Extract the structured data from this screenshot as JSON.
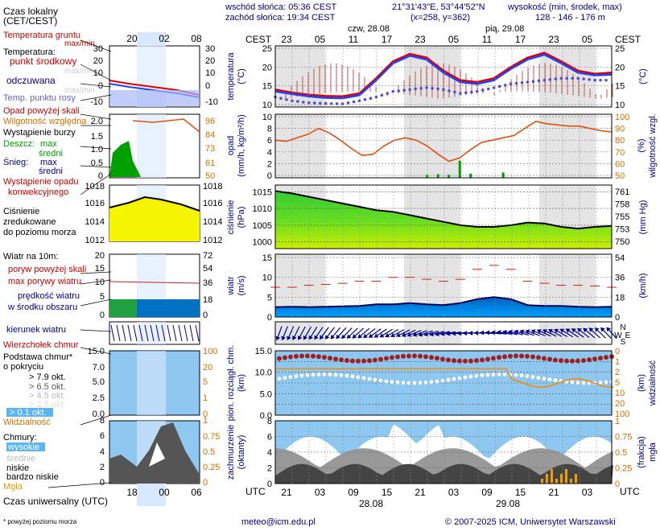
{
  "header": {
    "sunrise": "wschód słońca: 05:36 CEST",
    "sunset": "zachód słońca: 19:34 CEST",
    "coords": "21°31'43\"E, 53°44'52\"N",
    "grid": "(x=258, y=362)",
    "elev_title": "wysokość (min, środek, max)",
    "elev_values": "128 - 146 - 176 m"
  },
  "axes": {
    "cest": "CEST",
    "utc": "UTC",
    "day1_label": "czw, 28.08",
    "day2_label": "pią, 29.08",
    "top_ticks": [
      "23",
      "05",
      "11",
      "17",
      "23",
      "05",
      "11",
      "17",
      "23",
      "05"
    ],
    "bottom_ticks": [
      "21",
      "03",
      "09",
      "15",
      "21",
      "03",
      "09",
      "15",
      "21",
      "03"
    ],
    "bottom_day1": "28.08",
    "bottom_day2": "29.08"
  },
  "legend": {
    "local_time": "Czas lokalny",
    "local_time2": "(CET/CEST)",
    "local_ticks": [
      "20",
      "02",
      "08"
    ],
    "ground_temp": "Temperatura gruntu",
    "maxmin": "max/min",
    "temperature": "Temperatura:",
    "midpoint": "punkt środkowy",
    "maxmin_faint": "max/min",
    "feels": "odczuwana",
    "feels_maxmin": "max/min",
    "dew": "Temp. punktu rosy",
    "precip_over": "Opad powyżej skali",
    "humidity": "Wilgotność względna",
    "storm": "Wystąpienie burzy",
    "rain": "Deszcz:",
    "rain_max": "max",
    "rain_mean": "średni",
    "snow": "Śnieg:",
    "snow_max": "max",
    "snow_mean": "średni",
    "conv1": "Wystąpienie opadu",
    "conv2": "konwekcyjnego",
    "pressure1": "Ciśnienie",
    "pressure2": "zredukowane",
    "pressure3": "do poziomu morza",
    "wind10": "Wiatr na 10m:",
    "gust_over": "poryw powyżej skali",
    "gust_max": "max porywy wiatru",
    "wind_speed1": "prędkość wiatru",
    "wind_speed2": "w środku obszaru",
    "wind_dir": "kierunek wiatru",
    "cloud_top": "Wierzchołek chmur",
    "cloud_base1": "Podstawa chmur*",
    "cloud_base2": "o pokryciu",
    "okt1": "> 7.9 okt.",
    "okt2": "> 6.5 okt.",
    "okt3": "> 4.5 okt.",
    "okt4": "> 2.5 okt.",
    "okt5": "> 0.1 okt.",
    "visibility": "Widzialność",
    "clouds": "Chmury:",
    "high": "wysokie",
    "mid": "średnie",
    "low": "niskie",
    "very_low": "bardzo niskie",
    "fog": "Mgła",
    "utc_label": "Czas uniwersalny (UTC)",
    "utc_ticks": [
      "18",
      "00",
      "06"
    ],
    "footnote": "* powyżej poziomu morza"
  },
  "panels": {
    "temp_label": "temperatura",
    "temp_unit": "(°C)",
    "precip_label": "opad",
    "precip_unit": "(mm/h, kg/m²/h)",
    "rh_label": "wilgotność wzgl.",
    "rh_unit": "(%)",
    "press_label": "ciśnienie",
    "press_unit": "(hPa)",
    "press_unit_r": "(mm Hg)",
    "wind_label": "wiatr",
    "wind_unit": "(m/s)",
    "wind_unit_r": "(km/h)",
    "cloud_label1": "pion. rozciągł. chm.",
    "cloud_label2": "(km)",
    "vis_label": "widzialność",
    "vis_unit": "(km)",
    "cc_label1": "zachmurzenie",
    "cc_label2": "(oktanty)",
    "fog_label1": "mgła",
    "fog_label2": "(frakcja)"
  },
  "footer": {
    "email": "meteo@icm.edu.pl",
    "copyright": "© 2007-2025 ICM, Uniwersytet Warszawski"
  },
  "chart_data": [
    {
      "type": "line",
      "name": "temperature",
      "ylim": [
        10,
        25
      ],
      "yticks": [
        10,
        15,
        20,
        25
      ],
      "x_hours_from_start": [
        0,
        3,
        6,
        9,
        12,
        15,
        18,
        21,
        24,
        27,
        30,
        33,
        36,
        39,
        42,
        45,
        48,
        51,
        54,
        57,
        60
      ],
      "series": [
        {
          "values": [
            14,
            13.2,
            12.6,
            12.3,
            12.2,
            13,
            17,
            21.5,
            23.5,
            22.5,
            19,
            16.5,
            16,
            17,
            20,
            22.5,
            23.8,
            21.5,
            19,
            18.2,
            18.5
          ]
        },
        {
          "values": [
            13.5,
            12.8,
            12.2,
            11.8,
            11.7,
            12.5,
            16.5,
            21,
            23,
            22,
            18.5,
            16,
            15.5,
            16.5,
            19.5,
            22,
            23.3,
            21,
            18.5,
            17.8,
            18
          ]
        },
        {
          "values": [
            12,
            11,
            10.5,
            10.3,
            10.2,
            11,
            12,
            13.5,
            14,
            14.5,
            14,
            13,
            13.5,
            14.5,
            15.5,
            16,
            16.5,
            17,
            17,
            16.5,
            16.5
          ]
        }
      ]
    },
    {
      "type": "line",
      "name": "relative_humidity",
      "ylim": [
        50,
        100
      ],
      "yticks": [
        50,
        60,
        70,
        80,
        90,
        100
      ],
      "values": [
        80,
        79,
        82,
        85,
        90,
        86,
        80,
        73,
        67,
        68,
        75,
        80,
        82,
        80,
        75,
        68,
        62,
        65,
        72,
        78,
        80,
        82,
        84,
        90,
        96,
        94,
        93,
        92,
        92,
        90,
        88,
        87
      ],
      "precip_values_mm": [
        0,
        0,
        0,
        0,
        0,
        0,
        0,
        0,
        0,
        0,
        0,
        0,
        0,
        0,
        0.1,
        0.2,
        0.1,
        2.5,
        0.3,
        0,
        0,
        0.5,
        0,
        0,
        0,
        0,
        0,
        0,
        0,
        0,
        0,
        0
      ],
      "yticks_precip": [
        0,
        2,
        4,
        6,
        8,
        10
      ]
    },
    {
      "type": "area",
      "name": "pressure",
      "ylim": [
        998,
        1017
      ],
      "yticks": [
        1000,
        1005,
        1010,
        1015
      ],
      "yticks_right": [
        750,
        753,
        755,
        758,
        761
      ],
      "values": [
        1015.2,
        1014.5,
        1013.5,
        1012.5,
        1011.5,
        1010.5,
        1009.5,
        1009,
        1008,
        1007,
        1006,
        1005,
        1004.5,
        1004.5,
        1005,
        1005.8,
        1005.5,
        1004.5,
        1004,
        1004.5,
        1004.8
      ]
    },
    {
      "type": "line",
      "name": "wind",
      "ylim": [
        0,
        15
      ],
      "yticks": [
        0,
        5,
        10,
        15
      ],
      "yticks_right": [
        0,
        18,
        36,
        54
      ],
      "speed": [
        2.5,
        2.6,
        2.5,
        2.6,
        2.7,
        2.8,
        3.2,
        3.2,
        3.5,
        3.2,
        3,
        3.5,
        4.5,
        5,
        4.5,
        3,
        2.8,
        2.8,
        2.6,
        2.5,
        2.6
      ],
      "gust_max": [
        7.5,
        7.5,
        8,
        8.2,
        8.5,
        9,
        9,
        10,
        10,
        9.5,
        9,
        9.5,
        12,
        13,
        12,
        9,
        8.5,
        8,
        8,
        7.8,
        7.5
      ]
    },
    {
      "type": "scatter",
      "name": "cloud_base_visibility",
      "ylim": [
        0,
        15
      ],
      "yticks": [
        0,
        2.5,
        5,
        7.5,
        10,
        12.5,
        15
      ],
      "yticks_right": [
        0,
        1,
        2,
        5,
        10,
        20,
        100
      ]
    },
    {
      "type": "area",
      "name": "cloud_cover",
      "ylim": [
        0,
        8
      ],
      "yticks": [
        0,
        2,
        4,
        6,
        8
      ],
      "yticks_right": [
        0,
        0.25,
        0.5,
        0.75,
        1
      ]
    }
  ]
}
